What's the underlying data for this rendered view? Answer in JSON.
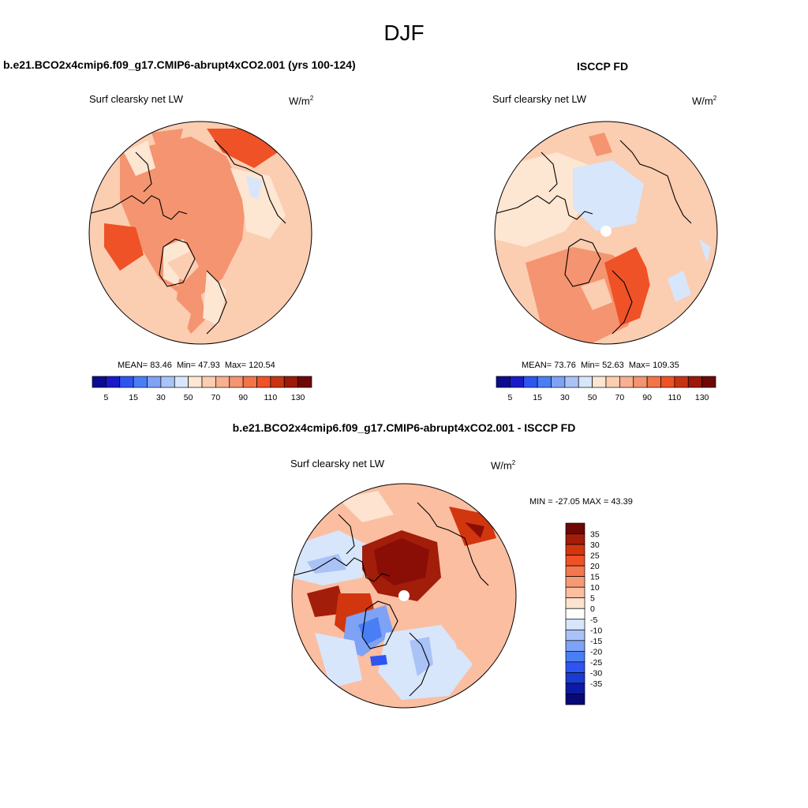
{
  "figure": {
    "season": "DJF"
  },
  "panels": [
    {
      "title": "b.e21.BCO2x4cmip6.f09_g17.CMIP6-abrupt4xCO2.001 (yrs 100-124)",
      "variable": "Surf clearsky net LW",
      "units": "W/m",
      "units_sup": "2",
      "stats": {
        "mean_label": "MEAN=",
        "mean": "83.46",
        "min_label": "Min=",
        "min": "47.93",
        "max_label": "Max=",
        "max": "120.54"
      }
    },
    {
      "title": "ISCCP FD",
      "variable": "Surf clearsky net LW",
      "units": "W/m",
      "units_sup": "2",
      "stats": {
        "mean_label": "MEAN=",
        "mean": "73.76",
        "min_label": "Min=",
        "min": "52.63",
        "max_label": "Max=",
        "max": "109.35"
      }
    },
    {
      "title": "b.e21.BCO2x4cmip6.f09_g17.CMIP6-abrupt4xCO2.001 - ISCCP FD",
      "variable": "Surf clearsky net LW",
      "units": "W/m",
      "units_sup": "2",
      "stats_line": "MIN = -27.05 MAX =  43.39"
    }
  ],
  "colorbar_fields": {
    "colors": [
      "#0c0c90",
      "#1a1ac8",
      "#2e55f0",
      "#4a7ef5",
      "#7ea2f5",
      "#a9c3f7",
      "#d7e6fb",
      "#fde6d2",
      "#fbcdb1",
      "#f8b090",
      "#f59470",
      "#f37448",
      "#ee5226",
      "#c73412",
      "#9b1a08",
      "#6e0806"
    ],
    "tick_labels": [
      "5",
      "15",
      "30",
      "50",
      "70",
      "90",
      "110",
      "130"
    ]
  },
  "colorbar_diff": {
    "colors": [
      "#6e0806",
      "#a21d0a",
      "#d2360f",
      "#ee5226",
      "#f3784c",
      "#f69a76",
      "#fbbea0",
      "#fde3d0",
      "#ffffff",
      "#d7e6fb",
      "#a9c3f7",
      "#7ea2f5",
      "#4a7ef5",
      "#2e55f0",
      "#1a3ccf",
      "#0c1ba3",
      "#08087a"
    ],
    "tick_labels": [
      "35",
      "30",
      "25",
      "20",
      "15",
      "10",
      "5",
      "0",
      "-5",
      "-10",
      "-15",
      "-20",
      "-25",
      "-30",
      "-35"
    ]
  },
  "map_colors": {
    "light_orange": "#fbcdb1",
    "mid_orange": "#f59470",
    "dark_orange": "#ee5226",
    "pale": "#fde6d2",
    "light_blue": "#d7e6fb",
    "dark_red": "#b3200a",
    "deep_red": "#8a0d06",
    "blue": "#7ea2f5"
  }
}
